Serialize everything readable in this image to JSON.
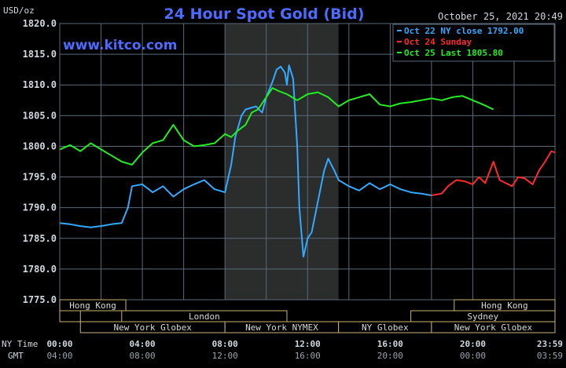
{
  "header": {
    "units_label": "USD/oz",
    "title": "24 Hour Spot Gold (Bid)",
    "timestamp": "October 25, 2021 20:49",
    "watermark": "www.kitco.com"
  },
  "legend": [
    {
      "label": "Oct 22 NY close 1792.00",
      "color": "#33aaff"
    },
    {
      "label": "Oct 24 Sunday",
      "color": "#ff2a2a"
    },
    {
      "label": "Oct 25 Last 1805.80",
      "color": "#22ee22"
    }
  ],
  "colors": {
    "background": "#000000",
    "grid": "#5a6a78",
    "text": "#cfd8e0",
    "title": "#4d6bff",
    "highlight_band": "#2a2d2c",
    "market_fill": "#000000",
    "market_border": "#c8b46e",
    "market_text": "#d8d8d8"
  },
  "axis": {
    "ny_time_label": "NY Time",
    "gmt_label": "GMT",
    "ny_ticks": [
      "00:00",
      "04:00",
      "08:00",
      "12:00",
      "16:00",
      "20:00",
      "23:59"
    ],
    "gmt_ticks": [
      "04:00",
      "08:00",
      "12:00",
      "16:00",
      "20:00",
      "00:00",
      "03:59"
    ]
  },
  "markets": [
    {
      "label": "Hong Kong",
      "row": 0,
      "from": 0.0,
      "to": 3.2
    },
    {
      "label": "Hong Kong",
      "row": 0,
      "from": 19.1,
      "to": 23.98
    },
    {
      "label": "",
      "row": 1,
      "from": 0.0,
      "to": 1.0
    },
    {
      "label": "London",
      "row": 1,
      "from": 3.0,
      "to": 11.0
    },
    {
      "label": "Sydney",
      "row": 1,
      "from": 17.0,
      "to": 23.98
    },
    {
      "label": "New York Globex",
      "row": 2,
      "from": 1.0,
      "to": 8.0
    },
    {
      "label": "New York NYMEX",
      "row": 2,
      "from": 8.0,
      "to": 13.5
    },
    {
      "label": "NY Globex",
      "row": 2,
      "from": 13.5,
      "to": 18.0
    },
    {
      "label": "New York Globex",
      "row": 2,
      "from": 18.0,
      "to": 23.98
    }
  ],
  "chart_data": {
    "type": "line",
    "title": "24 Hour Spot Gold (Bid)",
    "ylabel": "USD/oz",
    "xlabel": "NY Time",
    "ylim": [
      1775.0,
      1820.0
    ],
    "xlim": [
      0,
      23.98
    ],
    "y_ticks": [
      "1775.0",
      "1780.0",
      "1785.0",
      "1790.0",
      "1795.0",
      "1800.0",
      "1805.0",
      "1810.0",
      "1815.0",
      "1820.0"
    ],
    "grid": true,
    "legend_position": "top-right",
    "highlight_band": [
      8.0,
      13.5
    ],
    "series": [
      {
        "name": "Oct 22 NY close 1792.00",
        "color": "#33aaff",
        "x": [
          0,
          0.5,
          1.0,
          1.5,
          2.0,
          2.5,
          3.0,
          3.3,
          3.5,
          4.0,
          4.5,
          5.0,
          5.5,
          6.0,
          6.5,
          7.0,
          7.5,
          8.0,
          8.3,
          8.5,
          8.8,
          9.0,
          9.5,
          9.8,
          10.0,
          10.3,
          10.5,
          10.7,
          10.9,
          11.0,
          11.1,
          11.3,
          11.5,
          11.6,
          11.8,
          12.0,
          12.2,
          12.5,
          12.8,
          13.0,
          13.3,
          13.5,
          14.0,
          14.5,
          15.0,
          15.5,
          16.0,
          16.5,
          17.0,
          17.5,
          18.0
        ],
        "y": [
          1787.5,
          1787.3,
          1787.0,
          1786.8,
          1787.0,
          1787.3,
          1787.5,
          1790.0,
          1793.5,
          1793.8,
          1792.5,
          1793.5,
          1791.8,
          1793.0,
          1793.8,
          1794.5,
          1793.0,
          1792.5,
          1797.0,
          1801.5,
          1805.0,
          1806.0,
          1806.5,
          1805.5,
          1808.0,
          1810.5,
          1812.5,
          1813.0,
          1812.0,
          1810.0,
          1813.2,
          1811.0,
          1800.0,
          1790.0,
          1782.0,
          1785.0,
          1786.0,
          1791.0,
          1796.0,
          1798.0,
          1796.0,
          1794.5,
          1793.5,
          1792.8,
          1794.0,
          1793.0,
          1793.8,
          1793.0,
          1792.5,
          1792.3,
          1792.0
        ]
      },
      {
        "name": "Oct 24 Sunday",
        "color": "#ff2a2a",
        "x": [
          18.0,
          18.5,
          18.8,
          19.2,
          19.6,
          20.0,
          20.3,
          20.6,
          21.0,
          21.3,
          21.6,
          21.9,
          22.2,
          22.5,
          22.9,
          23.2,
          23.5,
          23.8,
          23.98
        ],
        "y": [
          1792.0,
          1792.3,
          1793.5,
          1794.5,
          1794.3,
          1793.8,
          1795.0,
          1794.0,
          1797.5,
          1794.5,
          1794.0,
          1793.5,
          1795.0,
          1794.8,
          1793.8,
          1796.0,
          1797.5,
          1799.2,
          1799.0
        ]
      },
      {
        "name": "Oct 25 Last 1805.80",
        "color": "#22ee22",
        "x": [
          0,
          0.5,
          1.0,
          1.5,
          2.0,
          2.5,
          3.0,
          3.5,
          4.0,
          4.5,
          5.0,
          5.5,
          6.0,
          6.5,
          7.0,
          7.5,
          8.0,
          8.3,
          8.6,
          9.0,
          9.3,
          9.6,
          10.0,
          10.3,
          10.6,
          11.0,
          11.5,
          12.0,
          12.5,
          13.0,
          13.5,
          14.0,
          14.5,
          15.0,
          15.5,
          16.0,
          16.5,
          17.0,
          17.5,
          18.0,
          18.5,
          19.0,
          19.5,
          20.0,
          20.5,
          21.0
        ],
        "y": [
          1799.5,
          1800.2,
          1799.2,
          1800.5,
          1799.5,
          1798.5,
          1797.5,
          1797.0,
          1799.0,
          1800.5,
          1801.0,
          1803.5,
          1801.0,
          1800.0,
          1800.2,
          1800.5,
          1802.0,
          1801.5,
          1802.5,
          1803.5,
          1805.5,
          1806.0,
          1808.0,
          1809.5,
          1809.0,
          1808.5,
          1807.5,
          1808.5,
          1808.8,
          1808.0,
          1806.5,
          1807.5,
          1808.0,
          1808.5,
          1806.8,
          1806.5,
          1807.0,
          1807.2,
          1807.5,
          1807.8,
          1807.5,
          1808.0,
          1808.2,
          1807.5,
          1806.8,
          1806.0
        ]
      }
    ]
  }
}
